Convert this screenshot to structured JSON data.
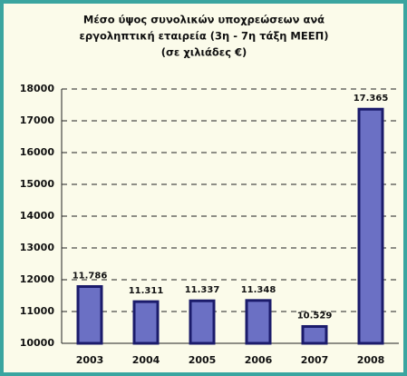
{
  "chart_data": {
    "type": "bar",
    "title": [
      "Μέσο ύψος συνολικών υποχρεώσεων ανά",
      "εργοληπτική εταιρεία (3η - 7η τάξη ΜΕΕΠ)",
      "(σε χιλιάδες €)"
    ],
    "categories": [
      "2003",
      "2004",
      "2005",
      "2006",
      "2007",
      "2008"
    ],
    "values": [
      11786,
      11311,
      11337,
      11348,
      10529,
      17365
    ],
    "value_labels": [
      "11.786",
      "11.311",
      "11.337",
      "11.348",
      "10.529",
      "17.365"
    ],
    "color": "#6b70c4",
    "ylim": [
      10000,
      18000
    ],
    "yticks": [
      10000,
      11000,
      12000,
      13000,
      14000,
      15000,
      16000,
      17000,
      18000
    ],
    "grid": true
  }
}
